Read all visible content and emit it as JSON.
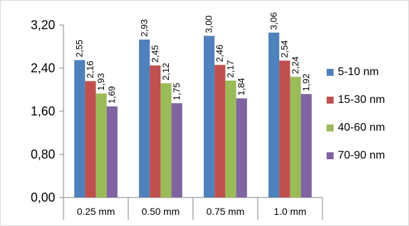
{
  "chart_data": {
    "type": "bar",
    "categories": [
      "0.25 mm",
      "0.50 mm",
      "0.75 mm",
      "1.0 mm"
    ],
    "series": [
      {
        "name": "5-10 nm",
        "color": "#4f81bd",
        "values": [
          2.55,
          2.93,
          3.0,
          3.06
        ],
        "labels": [
          "2,55",
          "2,93",
          "3,00",
          "3,06"
        ]
      },
      {
        "name": "15-30 nm",
        "color": "#c0504d",
        "values": [
          2.16,
          2.45,
          2.46,
          2.54
        ],
        "labels": [
          "2,16",
          "2,45",
          "2,46",
          "2,54"
        ]
      },
      {
        "name": "40-60 nm",
        "color": "#9bbb59",
        "values": [
          1.93,
          2.12,
          2.17,
          2.24
        ],
        "labels": [
          "1,93",
          "2,12",
          "2,17",
          "2,24"
        ]
      },
      {
        "name": "70-90 nm",
        "color": "#8064a2",
        "values": [
          1.69,
          1.75,
          1.84,
          1.92
        ],
        "labels": [
          "1,69",
          "1,75",
          "1,84",
          "1,92"
        ]
      }
    ],
    "y_ticks": [
      0,
      0.8,
      1.6,
      2.4,
      3.2
    ],
    "y_tick_labels": [
      "0,00",
      "0,80",
      "1,60",
      "2,40",
      "3,20"
    ],
    "ylim": [
      0,
      3.2
    ],
    "grid": false,
    "legend": "right"
  }
}
